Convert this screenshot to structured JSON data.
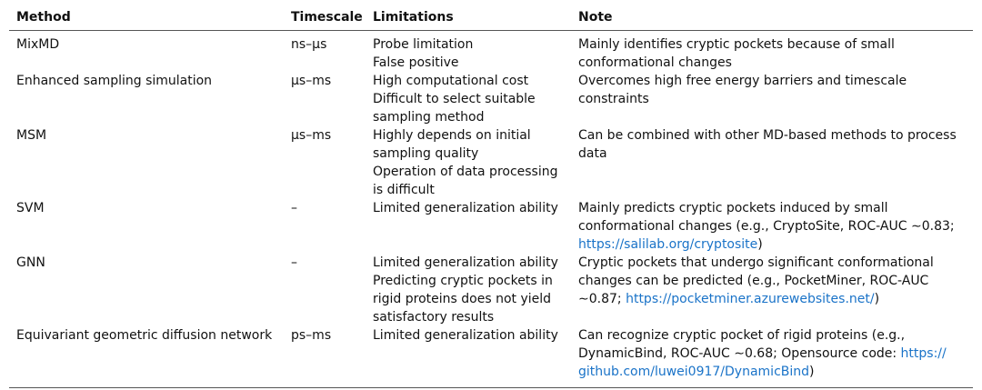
{
  "header": {
    "method": "Method",
    "timescale": "Timescale",
    "limitations": "Limitations",
    "note": "Note"
  },
  "rows": [
    {
      "method": "MixMD",
      "timescale": "ns–μs",
      "limitations": [
        "Probe limitation",
        "False positive"
      ],
      "note": [
        [
          {
            "t": "Mainly identifies cryptic pockets because of small",
            "link": false
          }
        ],
        [
          {
            "t": "conformational changes",
            "link": false
          }
        ]
      ]
    },
    {
      "method": "Enhanced sampling simulation",
      "timescale": "μs–ms",
      "limitations": [
        "High computational cost",
        "Difficult to select suitable",
        "sampling method"
      ],
      "note": [
        [
          {
            "t": "Overcomes high free energy barriers and timescale",
            "link": false
          }
        ],
        [
          {
            "t": "constraints",
            "link": false
          }
        ]
      ]
    },
    {
      "method": "MSM",
      "timescale": "μs–ms",
      "limitations": [
        "Highly depends on initial",
        "sampling quality",
        "Operation of data processing",
        "is difficult"
      ],
      "note": [
        [
          {
            "t": "Can be combined with other MD-based methods to process",
            "link": false
          }
        ],
        [
          {
            "t": "data",
            "link": false
          }
        ]
      ]
    },
    {
      "method": "SVM",
      "timescale": "–",
      "limitations": [
        "Limited generalization ability"
      ],
      "note": [
        [
          {
            "t": "Mainly predicts cryptic pockets induced by small",
            "link": false
          }
        ],
        [
          {
            "t": "conformational changes (e.g., CryptoSite, ROC-AUC ∼0.83;",
            "link": false
          }
        ],
        [
          {
            "t": "https://salilab.org/cryptosite",
            "link": true
          },
          {
            "t": ")",
            "link": false
          }
        ]
      ]
    },
    {
      "method": "GNN",
      "timescale": "–",
      "limitations": [
        "Limited generalization ability",
        "Predicting cryptic pockets in",
        "rigid proteins does not yield",
        "satisfactory results"
      ],
      "note": [
        [
          {
            "t": "Cryptic pockets that undergo significant conformational",
            "link": false
          }
        ],
        [
          {
            "t": "changes can be predicted (e.g., PocketMiner, ROC-AUC",
            "link": false
          }
        ],
        [
          {
            "t": "∼0.87; ",
            "link": false
          },
          {
            "t": "https://pocketminer.azurewebsites.net/",
            "link": true
          },
          {
            "t": ")",
            "link": false
          }
        ]
      ]
    },
    {
      "method": "Equivariant geometric diffusion network",
      "timescale": "ps–ms",
      "limitations": [
        "Limited generalization ability"
      ],
      "note": [
        [
          {
            "t": "Can recognize cryptic pocket of rigid proteins (e.g.,",
            "link": false
          }
        ],
        [
          {
            "t": "DynamicBind, ROC-AUC ∼0.68; Opensource code: ",
            "link": false
          },
          {
            "t": "https://",
            "link": true
          }
        ],
        [
          {
            "t": "github.com/luwei0917/DynamicBind",
            "link": true
          },
          {
            "t": ")",
            "link": false
          }
        ]
      ]
    }
  ]
}
